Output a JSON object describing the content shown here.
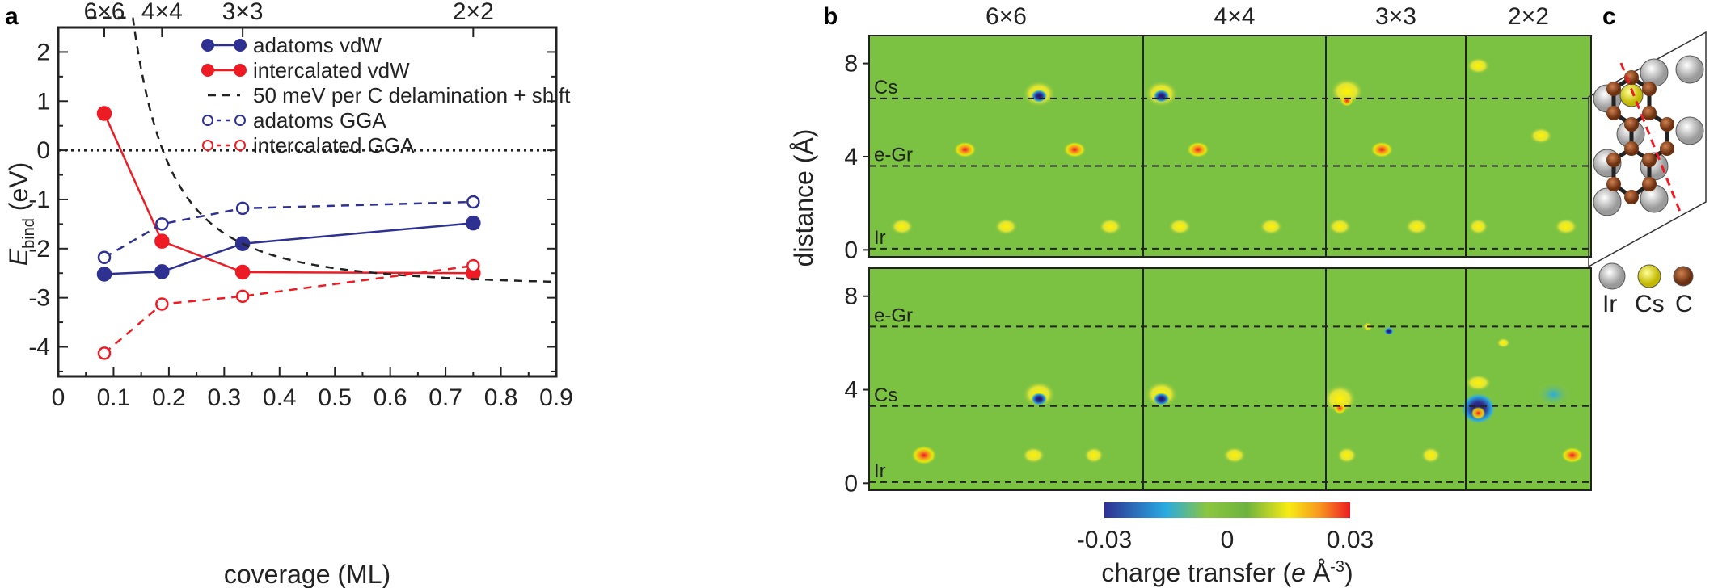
{
  "panels": {
    "a": "a",
    "b": "b",
    "c": "c"
  },
  "chart_data": {
    "type": "line",
    "xlabel": "coverage  (ML)",
    "ylabel": "E",
    "ylabel_sub": "bind",
    "ylabel_unit": " (eV)",
    "xlim": [
      0,
      0.9
    ],
    "ylim": [
      -4.6,
      2.5
    ],
    "xticks": [
      0,
      0.1,
      0.2,
      0.3,
      0.4,
      0.5,
      0.6,
      0.7,
      0.8,
      0.9
    ],
    "xtick_labels": [
      "0",
      "0.1",
      "0.2",
      "0.3",
      "0.4",
      "0.5",
      "0.6",
      "0.7",
      "0.8",
      "0.9"
    ],
    "yticks": [
      2,
      1,
      0,
      -1,
      -2,
      -3,
      -4
    ],
    "ytick_labels": [
      "2",
      "1",
      "0",
      "-1",
      "-2",
      "-3",
      "-4"
    ],
    "top_axis": {
      "ticks": [
        0.0833,
        0.1875,
        0.3333,
        0.75
      ],
      "labels": [
        "6×6",
        "4×4",
        "3×3",
        "2×2"
      ]
    },
    "zero_line": 0,
    "series": [
      {
        "name": "adatoms vdW",
        "color": "#2e3192",
        "style": "solid",
        "marker": "filled",
        "x": [
          0.0833,
          0.1875,
          0.3333,
          0.75
        ],
        "y": [
          -2.52,
          -2.47,
          -1.9,
          -1.48
        ]
      },
      {
        "name": "intercalated vdW",
        "color": "#ed1c24",
        "style": "solid",
        "marker": "filled",
        "x": [
          0.0833,
          0.1875,
          0.3333,
          0.75
        ],
        "y": [
          0.75,
          -1.85,
          -2.48,
          -2.5
        ]
      },
      {
        "name": "50 meV per C delamination + shift",
        "color": "#222222",
        "style": "dashed",
        "marker": "none",
        "curve": {
          "a": 0.1,
          "b": -2.8,
          "x_from": 0.055,
          "x_to": 0.9
        }
      },
      {
        "name": "adatoms GGA",
        "color": "#2e3192",
        "style": "dashed",
        "marker": "open",
        "x": [
          0.0833,
          0.1875,
          0.3333,
          0.75
        ],
        "y": [
          -2.18,
          -1.5,
          -1.18,
          -1.05
        ]
      },
      {
        "name": "intercalated GGA",
        "color": "#ed1c24",
        "style": "dashed",
        "marker": "open",
        "x": [
          0.0833,
          0.1875,
          0.3333,
          0.75
        ],
        "y": [
          -4.13,
          -3.13,
          -2.97,
          -2.35
        ]
      }
    ],
    "maps": {
      "column_labels": [
        "6×6",
        "4×4",
        "3×3",
        "2×2"
      ],
      "ylabel": "distance  (Å)",
      "yticks": [
        0,
        4,
        8
      ],
      "ylim": [
        -0.3,
        9.2
      ],
      "rows": [
        {
          "layers": [
            {
              "label": "Cs",
              "z": 6.5
            },
            {
              "label": "e-Gr",
              "z": 3.6
            },
            {
              "label": "Ir",
              "z": 0.05
            }
          ]
        },
        {
          "layers": [
            {
              "label": "e-Gr",
              "z": 6.7
            },
            {
              "label": "Cs",
              "z": 3.3
            },
            {
              "label": "Ir",
              "z": 0.05
            }
          ]
        }
      ],
      "colorbar": {
        "min": -0.03,
        "max": 0.03,
        "tick_labels": [
          "-0.03",
          "0",
          "0.03"
        ],
        "label_prefix": "charge transfer (",
        "label_italic": "e",
        "label_unit": " Å",
        "label_exp": "-3",
        "label_suffix": ")",
        "colors": [
          "#2e3192",
          "#29abe2",
          "#8cc63f",
          "#6db33f",
          "#f7ec13",
          "#f7931e",
          "#ed1c24"
        ]
      }
    },
    "structure": {
      "legend": [
        "Ir",
        "Cs",
        "C"
      ],
      "colors": [
        "#cfcfcf",
        "#e6e000",
        "#a0522d"
      ]
    }
  }
}
